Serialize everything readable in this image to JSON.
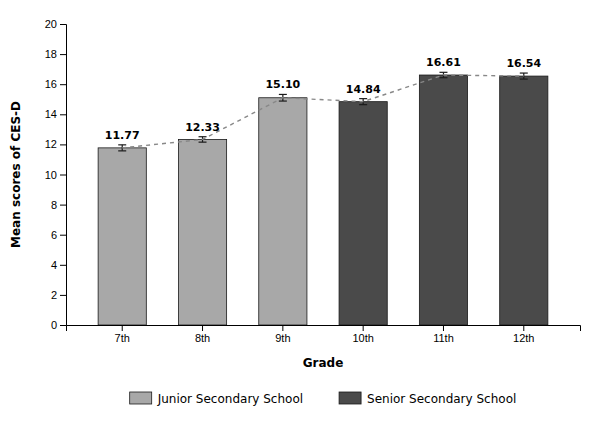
{
  "chart_data": {
    "type": "bar",
    "xlabel": "Grade",
    "ylabel": "Mean scores of CES-D",
    "categories": [
      "7th",
      "8th",
      "9th",
      "10th",
      "11th",
      "12th"
    ],
    "series": [
      {
        "name": "Junior Secondary School",
        "color": "#a8a8a8",
        "values": [
          11.77,
          12.33,
          15.1,
          null,
          null,
          null
        ],
        "errors": [
          0.2,
          0.18,
          0.22,
          null,
          null,
          null
        ],
        "value_labels": [
          "11.77",
          "12.33",
          "15.10",
          null,
          null,
          null
        ]
      },
      {
        "name": "Senior Secondary School",
        "color": "#4a4a4a",
        "values": [
          null,
          null,
          null,
          14.84,
          16.61,
          16.54
        ],
        "errors": [
          null,
          null,
          null,
          0.2,
          0.18,
          0.2
        ],
        "value_labels": [
          null,
          null,
          null,
          "14.84",
          "16.61",
          "16.54"
        ]
      },
      {
        "type": "line",
        "color": "#888888",
        "line_style": "dashed",
        "values": [
          11.77,
          12.33,
          15.1,
          14.84,
          16.61,
          16.54
        ]
      }
    ],
    "ylim": [
      0,
      20
    ],
    "yticks": [
      0,
      2,
      4,
      6,
      8,
      10,
      12,
      14,
      16,
      18,
      20
    ],
    "data_labels": true,
    "legend": "bottom",
    "grid": false
  }
}
